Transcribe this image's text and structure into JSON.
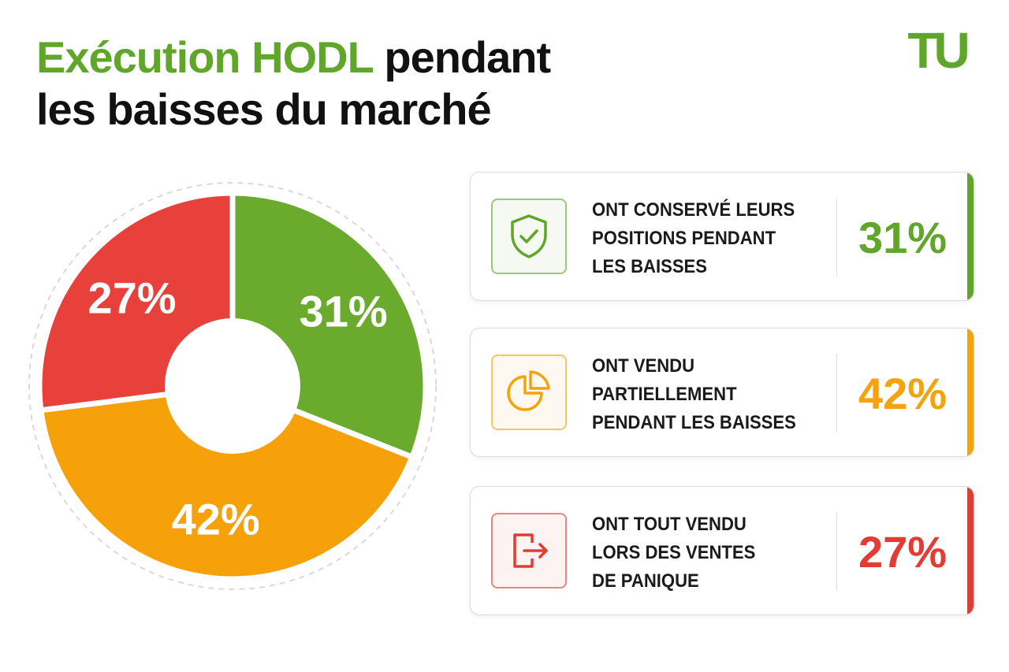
{
  "title": {
    "accent": "Exécution HODL",
    "rest_line1": " pendant",
    "line2": "les baisses du marché"
  },
  "logo": {
    "text": "TU",
    "color": "#5fa62a"
  },
  "chart_data": {
    "type": "pie",
    "variant": "donut",
    "slices": [
      {
        "label": "ONT CONSERVÉ LEURS POSITIONS PENDANT LES BAISSES",
        "value": 31,
        "display": "31%",
        "color": "#6aab2e"
      },
      {
        "label": "ONT VENDU PARTIELLEMENT PENDANT LES BAISSES",
        "value": 42,
        "display": "42%",
        "color": "#f7a10a"
      },
      {
        "label": "ONT TOUT VENDU LORS DES VENTES DE PANIQUE",
        "value": 27,
        "display": "27%",
        "color": "#e8403a"
      }
    ]
  },
  "cards": [
    {
      "lines": [
        "ONT CONSERVÉ LEURS",
        "POSITIONS PENDANT",
        "LES BAISSES"
      ],
      "value": "31%",
      "color": "#5fa62a",
      "icon": "shield-check-icon"
    },
    {
      "lines": [
        "ONT VENDU",
        "PARTIELLEMENT",
        "PENDANT LES BAISSES"
      ],
      "value": "42%",
      "color": "#f4a30c",
      "icon": "pie-chart-icon"
    },
    {
      "lines": [
        "ONT TOUT VENDU",
        "LORS DES VENTES",
        "DE PANIQUE"
      ],
      "value": "27%",
      "color": "#e43b33",
      "icon": "exit-icon"
    }
  ]
}
